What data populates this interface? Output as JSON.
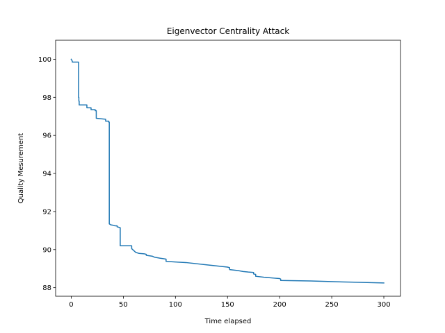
{
  "chart_data": {
    "type": "line",
    "title": "Eigenvector Centrality Attack",
    "xlabel": "Time elapsed",
    "ylabel": "Quality Mesurement",
    "xlim": [
      -15,
      316
    ],
    "ylim": [
      87.55,
      101
    ],
    "xticks": [
      0,
      50,
      100,
      150,
      200,
      250,
      300
    ],
    "yticks": [
      88,
      90,
      92,
      94,
      96,
      98,
      100
    ],
    "grid": false,
    "line_color": "#1f77b4",
    "series": [
      {
        "x": [
          0,
          1,
          1,
          7,
          7,
          7.3,
          7.3,
          7.6,
          7.6,
          15,
          15,
          19,
          19,
          23,
          23,
          24,
          24,
          33,
          33,
          36,
          36,
          36.5,
          36.5,
          38,
          40,
          42,
          44,
          44,
          47,
          47,
          58,
          58,
          59,
          60,
          61,
          62,
          64,
          65,
          70,
          72,
          72,
          78,
          80,
          85,
          91,
          91,
          100,
          110,
          130,
          150,
          152,
          152,
          160,
          165,
          170,
          175,
          175,
          177,
          177,
          185,
          195,
          200,
          201,
          201,
          210,
          230,
          260,
          300
        ],
        "y": [
          100,
          99.9,
          99.85,
          99.85,
          98.0,
          98.0,
          97.8,
          97.8,
          97.6,
          97.6,
          97.45,
          97.45,
          97.35,
          97.35,
          97.3,
          97.3,
          96.9,
          96.85,
          96.75,
          96.75,
          96.7,
          96.7,
          91.35,
          91.3,
          91.28,
          91.25,
          91.25,
          91.2,
          91.15,
          90.2,
          90.2,
          90.05,
          90.0,
          89.95,
          89.9,
          89.85,
          89.82,
          89.8,
          89.78,
          89.75,
          89.7,
          89.65,
          89.6,
          89.55,
          89.5,
          89.38,
          89.35,
          89.32,
          89.2,
          89.08,
          89.05,
          88.95,
          88.9,
          88.85,
          88.82,
          88.8,
          88.72,
          88.7,
          88.6,
          88.55,
          88.5,
          88.48,
          88.45,
          88.38,
          88.37,
          88.35,
          88.3,
          88.25
        ]
      }
    ]
  }
}
